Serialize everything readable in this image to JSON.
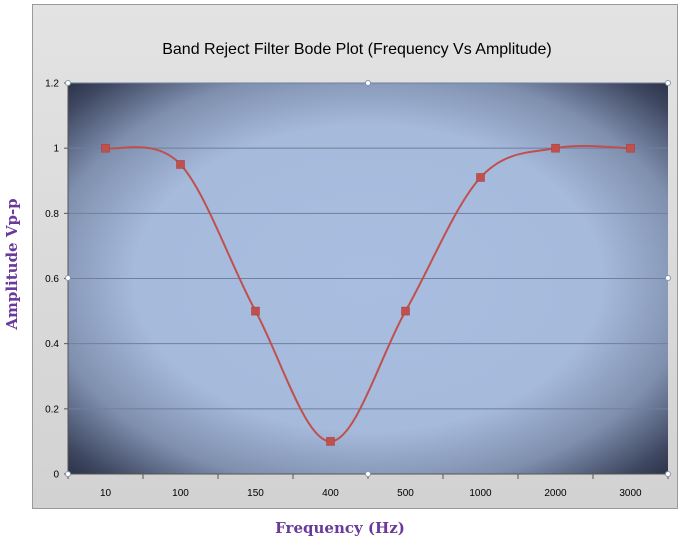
{
  "chart_data": {
    "type": "line",
    "title": "Band Reject Filter Bode Plot (Frequency Vs Amplitude)",
    "xlabel": "Frequency (Hz)",
    "ylabel": "Amplitude Vp-p",
    "categories": [
      "10",
      "100",
      "150",
      "400",
      "500",
      "1000",
      "2000",
      "3000"
    ],
    "series": [
      {
        "values": [
          1.0,
          0.95,
          0.5,
          0.1,
          0.5,
          0.91,
          1.0,
          1.0
        ]
      }
    ],
    "ylim": [
      0,
      1.2
    ],
    "yticks": [
      "0",
      "0.2",
      "0.4",
      "0.6",
      "0.8",
      "1",
      "1.2"
    ],
    "grid": true,
    "smooth": true,
    "line_color": "#c0504d",
    "marker_color": "#c0504d",
    "plot_background": "#a8bde0",
    "plot_edge": "#1c2234"
  }
}
